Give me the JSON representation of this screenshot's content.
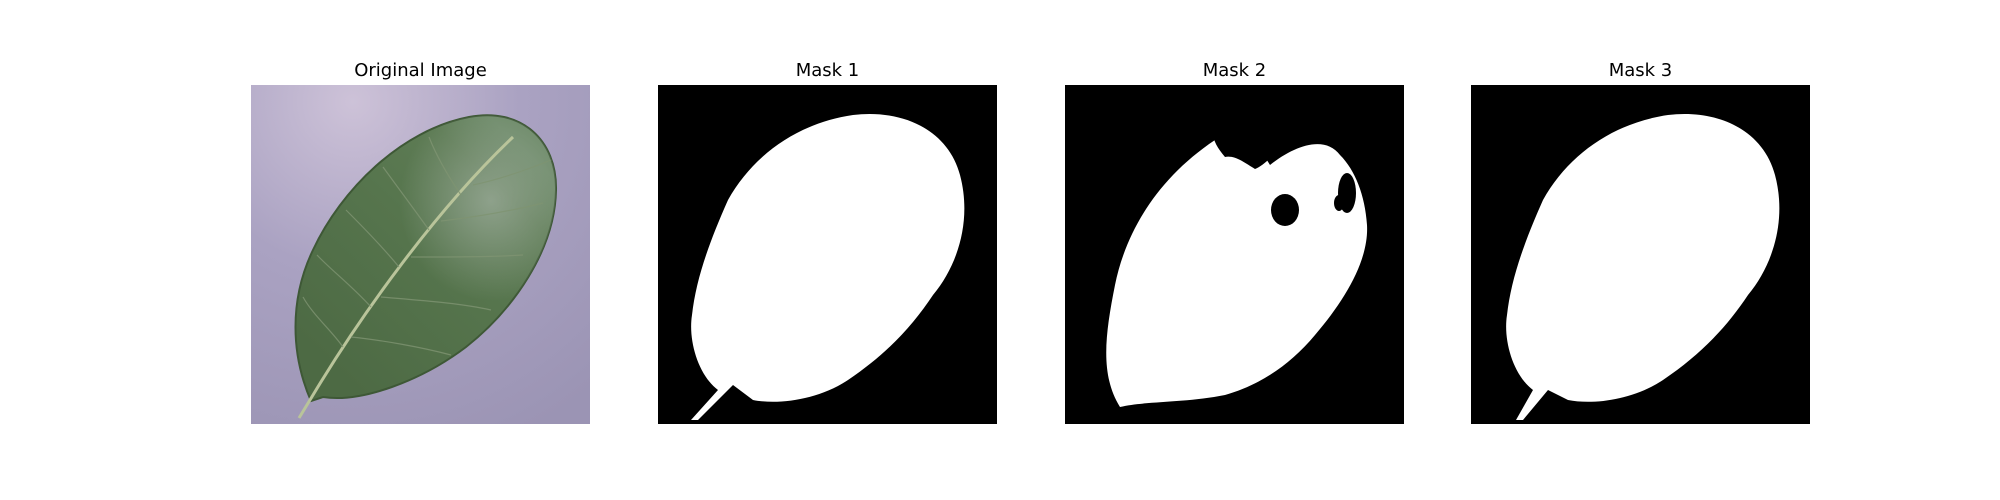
{
  "panels": [
    {
      "title": "Original Image"
    },
    {
      "title": "Mask 1"
    },
    {
      "title": "Mask 2"
    },
    {
      "title": "Mask 3"
    }
  ],
  "colors": {
    "background": "#ffffff",
    "mask_background": "#000000",
    "mask_foreground": "#ffffff",
    "leaf_green": "#4f6f46",
    "photo_backdrop": "#a79fbd"
  }
}
